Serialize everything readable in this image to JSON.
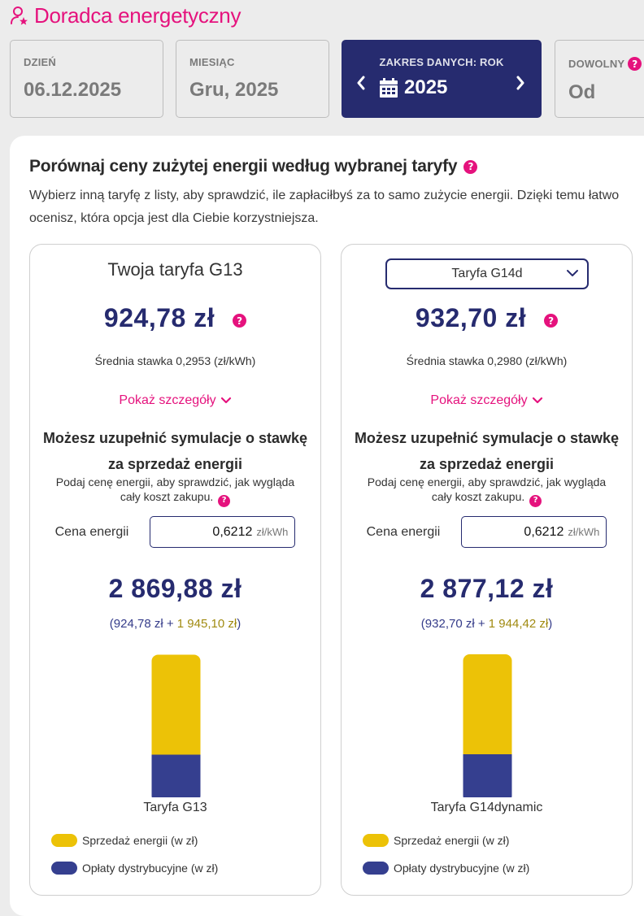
{
  "app": {
    "title": "Doradca energetyczny",
    "title_icon": "user-star-icon",
    "accent_color": "#e5127d",
    "primary_color": "#262b6f"
  },
  "range_tabs": {
    "day": {
      "label": "DZIEŃ",
      "value": "06.12.2025"
    },
    "month": {
      "label": "MIESIĄC",
      "value": "Gru, 2025"
    },
    "year": {
      "label": "ZAKRES DANYCH: ROK",
      "value": "2025",
      "prev_icon": "chevron-left-icon",
      "next_icon": "chevron-right-icon",
      "calendar_icon": "calendar-icon"
    },
    "custom": {
      "label": "DOWOLNY",
      "value": "Od",
      "help": "?"
    }
  },
  "panel": {
    "title": "Porównaj ceny zużytej energii według wybranej taryfy",
    "help": "?",
    "description": "Wybierz inną taryfę z listy, aby sprawdzić, ile zapłaciłbyś za to samo zużycie energii. Dzięki temu łatwo ocenisz, która opcja jest dla Ciebie korzystniejsza."
  },
  "cards": [
    {
      "tariff_title": "Twoja taryfa G13",
      "price": "924,78 zł",
      "help": "?",
      "avg_rate": "Średnia stawka 0,2953 (zł/kWh)",
      "details_link": "Pokaż szczegóły",
      "sim_heading": "Możesz uzupełnić symulacje o stawkę za sprzedaż energii",
      "sim_desc": "Podaj cenę energii, aby sprawdzić, jak wygląda cały koszt zakupu.",
      "price_label": "Cena energii",
      "price_value": "0,6212",
      "price_unit": "zł/kWh",
      "total": "2 869,88 zł",
      "breakdown_open": "(",
      "breakdown_dist": "924,78 zł",
      "breakdown_plus": " + ",
      "breakdown_sale": "1 945,10 zł",
      "breakdown_close": ")",
      "bar_label": "Taryfa G13"
    },
    {
      "select_value": "Taryfa G14d",
      "price": "932,70 zł",
      "help": "?",
      "avg_rate": "Średnia stawka 0,2980 (zł/kWh)",
      "details_link": "Pokaż szczegóły",
      "sim_heading": "Możesz uzupełnić symulacje o stawkę za sprzedaż energii",
      "sim_desc": "Podaj cenę energii, aby sprawdzić, jak wygląda cały koszt zakupu.",
      "price_label": "Cena energii",
      "price_value": "0,6212",
      "price_unit": "zł/kWh",
      "total": "2 877,12 zł",
      "breakdown_open": "(",
      "breakdown_dist": "932,70 zł",
      "breakdown_plus": " + ",
      "breakdown_sale": "1 944,42 zł",
      "breakdown_close": ")",
      "bar_label": "Taryfa G14dynamic"
    }
  ],
  "legend": {
    "sale": "Sprzedaż energii (w zł)",
    "distribution": "Opłaty dystrybucyjne (w zł)"
  },
  "chart_data": [
    {
      "type": "bar",
      "stacked": true,
      "categories": [
        "Taryfa G13"
      ],
      "series": [
        {
          "name": "Opłaty dystrybucyjne (w zł)",
          "color": "#353f8f",
          "values": [
            924.78
          ]
        },
        {
          "name": "Sprzedaż energii (w zł)",
          "color": "#ecc207",
          "values": [
            1945.1
          ]
        }
      ],
      "legend": "bottom-left",
      "grid": false
    },
    {
      "type": "bar",
      "stacked": true,
      "categories": [
        "Taryfa G14dynamic"
      ],
      "series": [
        {
          "name": "Opłaty dystrybucyjne (w zł)",
          "color": "#353f8f",
          "values": [
            932.7
          ]
        },
        {
          "name": "Sprzedaż energii (w zł)",
          "color": "#ecc207",
          "values": [
            1944.42
          ]
        }
      ],
      "legend": "bottom-left",
      "grid": false
    }
  ]
}
